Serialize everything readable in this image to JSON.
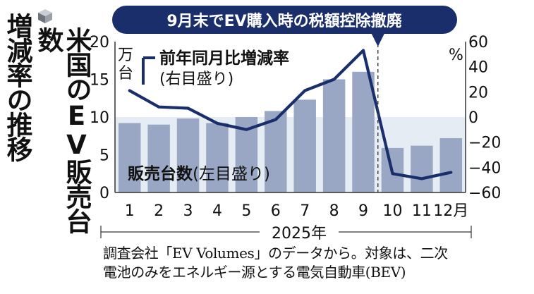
{
  "title": {
    "col1": "米国のEV販売台数",
    "col2": "増減率の推移"
  },
  "banner": "9月末でEV購入時の税額控除撤廃",
  "source": {
    "line1": "調査会社「EV Volumes」のデータから。対象は、二次",
    "line2": "電池のみをエネルギー源とする電気自動車(BEV)"
  },
  "colors": {
    "bar": "#9aa7c4",
    "line": "#1a2e6b",
    "band": "#e6ecf4",
    "banner": "#1a2e6b"
  },
  "chart_data": {
    "type": "bar+line",
    "categories": [
      "1",
      "2",
      "3",
      "4",
      "5",
      "6",
      "7",
      "8",
      "9",
      "10",
      "11",
      "12月"
    ],
    "x_group_label": "2025年",
    "left_axis": {
      "unit": "万台",
      "ylim": [
        0,
        20
      ],
      "ticks": [
        "0",
        "5",
        "10",
        "15",
        "20"
      ]
    },
    "right_axis": {
      "unit": "%",
      "ylim": [
        -60,
        60
      ],
      "ticks": [
        "−60",
        "−40",
        "−20",
        "0",
        "20",
        "40",
        "60"
      ]
    },
    "series": [
      {
        "name": "販売台数(左目盛り)",
        "kind": "bar",
        "axis": "left",
        "values": [
          9.2,
          9.0,
          9.8,
          9.2,
          10.0,
          10.8,
          12.3,
          15.0,
          16.0,
          5.9,
          6.2,
          7.2
        ]
      },
      {
        "name": "前年同月比増減率(右目盛り)",
        "kind": "line",
        "axis": "right",
        "values": [
          21,
          8,
          7,
          -5,
          -10,
          -2,
          21,
          30,
          53,
          -45,
          -49,
          -44
        ]
      }
    ],
    "shaded_band": {
      "axis": "left",
      "from": 0,
      "to": 10
    },
    "annotation": {
      "text": "9月末でEV購入時の税額控除撤廃",
      "between": [
        "9",
        "10"
      ]
    }
  }
}
